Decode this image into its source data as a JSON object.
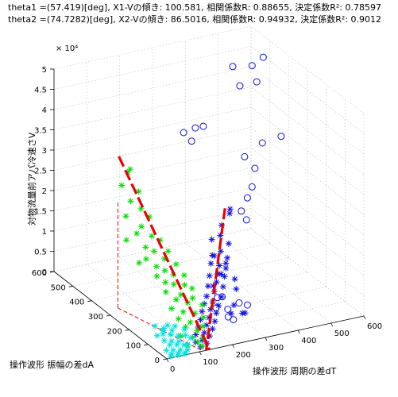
{
  "chart_data": {
    "type": "scatter3d",
    "title_lines": [
      "theta1 =(57.419)[deg], X1-Vの傾き: 100.581, 相関係数R: 0.88655, 決定係数R²: 0.78597",
      "theta2 =(74.7282)[deg], X2-Vの傾き: 86.5016, 相関係数R: 0.94932, 決定係数R²: 0.9012"
    ],
    "xlabel": "操作波形 周期の差dT",
    "ylabel": "操作波形 振幅の差dA",
    "zlabel": "対物流量前アパ冷速さV",
    "z_exponent_label": "× 10⁴",
    "xlim": [
      0,
      600
    ],
    "ylim": [
      0,
      600
    ],
    "zlim": [
      0,
      5
    ],
    "x_ticks": [
      "0",
      "100",
      "200",
      "300",
      "400",
      "500",
      "600"
    ],
    "y_ticks": [
      "0",
      "100",
      "200",
      "300",
      "400",
      "500",
      "600"
    ],
    "z_ticks": [
      "0",
      "0.5",
      "1",
      "1.5",
      "2",
      "2.5",
      "3",
      "3.5",
      "4",
      "4.5",
      "5"
    ],
    "grid": true,
    "colors": {
      "blue_markers": "#1010e0",
      "green_markers": "#00dd00",
      "cyan_markers": "#00e0e0",
      "fit_line": "#ee0000",
      "projection": "#ee0000"
    },
    "series": [
      {
        "marker": "circle",
        "color": "#1010e0",
        "points": [
          [
            540,
            430,
            4.95
          ],
          [
            500,
            420,
            4.85
          ],
          [
            470,
            470,
            4.7
          ],
          [
            440,
            380,
            4.6
          ],
          [
            480,
            360,
            4.7
          ],
          [
            230,
            250,
            4.4
          ],
          [
            260,
            260,
            4.35
          ],
          [
            200,
            260,
            4.3
          ],
          [
            230,
            270,
            4.0
          ],
          [
            520,
            300,
            3.5
          ],
          [
            480,
            330,
            3.3
          ],
          [
            420,
            320,
            3.1
          ],
          [
            440,
            300,
            2.85
          ],
          [
            420,
            280,
            2.5
          ],
          [
            400,
            270,
            2.3
          ],
          [
            370,
            250,
            2.1
          ],
          [
            380,
            240,
            1.9
          ],
          [
            240,
            150,
            0.55
          ],
          [
            260,
            160,
            0.5
          ],
          [
            230,
            140,
            0.35
          ],
          [
            260,
            130,
            0.3
          ],
          [
            300,
            140,
            0.35
          ],
          [
            320,
            130,
            0.3
          ],
          [
            250,
            110,
            0.2
          ],
          [
            260,
            100,
            0.15
          ]
        ]
      },
      {
        "marker": "star",
        "color": "#1010e0",
        "points": [
          [
            250,
            100,
            2.9
          ],
          [
            260,
            120,
            2.7
          ],
          [
            230,
            110,
            2.5
          ],
          [
            220,
            100,
            2.3
          ],
          [
            200,
            110,
            2.2
          ],
          [
            240,
            90,
            2.1
          ],
          [
            210,
            80,
            2.0
          ],
          [
            190,
            90,
            1.9
          ],
          [
            230,
            80,
            1.8
          ],
          [
            180,
            80,
            1.75
          ],
          [
            200,
            70,
            1.7
          ],
          [
            220,
            70,
            1.6
          ],
          [
            190,
            60,
            1.55
          ],
          [
            170,
            70,
            1.5
          ],
          [
            210,
            60,
            1.45
          ],
          [
            180,
            50,
            1.4
          ],
          [
            160,
            60,
            1.3
          ],
          [
            200,
            50,
            1.25
          ],
          [
            170,
            45,
            1.2
          ],
          [
            150,
            50,
            1.1
          ],
          [
            190,
            40,
            1.05
          ],
          [
            160,
            35,
            1.0
          ],
          [
            140,
            45,
            0.95
          ],
          [
            175,
            30,
            0.9
          ],
          [
            150,
            30,
            0.85
          ],
          [
            130,
            40,
            0.8
          ],
          [
            165,
            25,
            0.75
          ],
          [
            140,
            20,
            0.7
          ],
          [
            120,
            30,
            0.65
          ],
          [
            155,
            15,
            0.6
          ],
          [
            130,
            15,
            0.55
          ],
          [
            110,
            25,
            0.5
          ],
          [
            145,
            10,
            0.45
          ],
          [
            120,
            10,
            0.4
          ],
          [
            100,
            20,
            0.35
          ],
          [
            135,
            8,
            0.3
          ],
          [
            110,
            5,
            0.25
          ],
          [
            95,
            12,
            0.2
          ],
          [
            125,
            5,
            0.15
          ],
          [
            105,
            3,
            0.1
          ],
          [
            210,
            120,
            1.0
          ],
          [
            240,
            130,
            1.2
          ],
          [
            260,
            140,
            1.4
          ],
          [
            230,
            150,
            1.6
          ],
          [
            270,
            110,
            1.1
          ],
          [
            280,
            120,
            0.8
          ],
          [
            250,
            80,
            0.6
          ],
          [
            230,
            60,
            0.5
          ],
          [
            270,
            70,
            0.4
          ],
          [
            290,
            90,
            0.3
          ]
        ]
      },
      {
        "marker": "star",
        "color": "#00dd00",
        "points": [
          [
            60,
            300,
            3.5
          ],
          [
            70,
            330,
            3.3
          ],
          [
            40,
            310,
            3.1
          ],
          [
            80,
            290,
            2.95
          ],
          [
            50,
            280,
            2.8
          ],
          [
            70,
            260,
            2.65
          ],
          [
            30,
            270,
            2.5
          ],
          [
            90,
            250,
            2.45
          ],
          [
            60,
            240,
            2.3
          ],
          [
            40,
            230,
            2.2
          ],
          [
            80,
            220,
            2.1
          ],
          [
            100,
            210,
            2.0
          ],
          [
            50,
            200,
            1.95
          ],
          [
            70,
            190,
            1.85
          ],
          [
            110,
            185,
            1.8
          ],
          [
            40,
            180,
            1.75
          ],
          [
            90,
            170,
            1.7
          ],
          [
            60,
            160,
            1.6
          ],
          [
            120,
            160,
            1.55
          ],
          [
            80,
            150,
            1.5
          ],
          [
            50,
            140,
            1.45
          ],
          [
            100,
            140,
            1.4
          ],
          [
            130,
            135,
            1.35
          ],
          [
            70,
            130,
            1.3
          ],
          [
            90,
            120,
            1.25
          ],
          [
            120,
            115,
            1.2
          ],
          [
            60,
            110,
            1.15
          ],
          [
            140,
            110,
            1.1
          ],
          [
            100,
            100,
            1.05
          ],
          [
            80,
            90,
            1.0
          ],
          [
            130,
            90,
            0.95
          ],
          [
            110,
            80,
            0.9
          ],
          [
            60,
            80,
            0.85
          ],
          [
            150,
            75,
            0.8
          ],
          [
            90,
            70,
            0.75
          ],
          [
            120,
            60,
            0.7
          ],
          [
            70,
            60,
            0.65
          ],
          [
            140,
            50,
            0.6
          ],
          [
            100,
            50,
            0.55
          ],
          [
            80,
            40,
            0.5
          ],
          [
            130,
            35,
            0.45
          ],
          [
            110,
            30,
            0.4
          ],
          [
            60,
            30,
            0.35
          ],
          [
            90,
            20,
            0.3
          ],
          [
            120,
            18,
            0.25
          ],
          [
            100,
            10,
            0.2
          ],
          [
            70,
            12,
            0.15
          ],
          [
            110,
            5,
            0.1
          ],
          [
            20,
            250,
            2.0
          ],
          [
            30,
            200,
            1.6
          ]
        ]
      },
      {
        "marker": "star",
        "color": "#00e0e0",
        "points": [
          [
            10,
            80,
            0.5
          ],
          [
            30,
            70,
            0.45
          ],
          [
            50,
            60,
            0.4
          ],
          [
            20,
            55,
            0.38
          ],
          [
            40,
            50,
            0.35
          ],
          [
            60,
            45,
            0.3
          ],
          [
            15,
            40,
            0.28
          ],
          [
            35,
            35,
            0.25
          ],
          [
            55,
            32,
            0.22
          ],
          [
            25,
            28,
            0.2
          ],
          [
            45,
            25,
            0.18
          ],
          [
            65,
            22,
            0.15
          ],
          [
            10,
            20,
            0.12
          ],
          [
            30,
            18,
            0.1
          ],
          [
            50,
            15,
            0.08
          ],
          [
            70,
            12,
            0.06
          ],
          [
            20,
            10,
            0.05
          ],
          [
            40,
            8,
            0.04
          ],
          [
            60,
            6,
            0.03
          ],
          [
            15,
            5,
            0.02
          ],
          [
            35,
            4,
            0.02
          ],
          [
            55,
            3,
            0.01
          ],
          [
            80,
            40,
            0.3
          ],
          [
            90,
            30,
            0.25
          ],
          [
            75,
            20,
            0.15
          ],
          [
            5,
            60,
            0.35
          ],
          [
            25,
            65,
            0.42
          ],
          [
            45,
            75,
            0.48
          ],
          [
            85,
            55,
            0.38
          ],
          [
            65,
            70,
            0.44
          ]
        ]
      }
    ],
    "fit_lines": [
      {
        "color": "#ee0000",
        "from": [
          60,
          360,
          3.6
        ],
        "to": [
          130,
          0,
          0.0
        ]
      },
      {
        "color": "#ee0000",
        "from": [
          240,
          110,
          2.9
        ],
        "to": [
          120,
          0,
          0.0
        ]
      }
    ],
    "projection_lines": [
      {
        "color": "#ee0000",
        "from": [
          40,
          330,
          0
        ],
        "to": [
          40,
          330,
          2.6
        ]
      },
      {
        "color": "#ee0000",
        "from": [
          40,
          330,
          0
        ],
        "to": [
          110,
          0,
          0
        ]
      }
    ]
  }
}
